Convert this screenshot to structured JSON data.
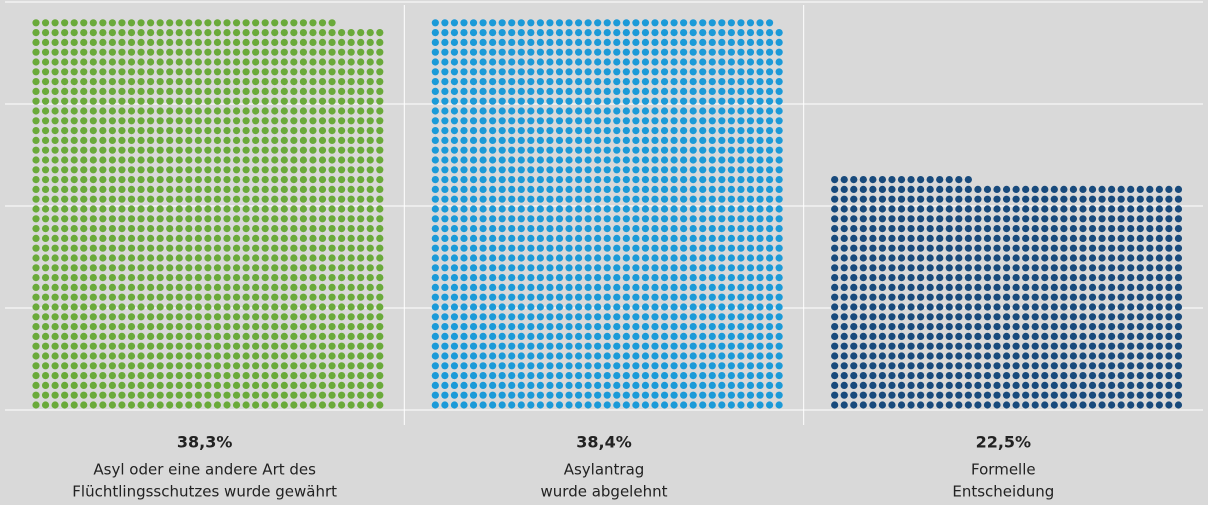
{
  "chart_data": {
    "type": "dot-grid",
    "categories": [
      [
        "Asyl oder eine andere Art des",
        "Flüchtlingsschutzes wurde gewährt"
      ],
      [
        "Asylantrag",
        "wurde abgelehnt"
      ],
      [
        "Formelle",
        "Entscheidung"
      ]
    ],
    "values": [
      38.3,
      38.4,
      22.5
    ],
    "value_labels": [
      "38,3%",
      "38,4%",
      "22,5%"
    ],
    "colors": [
      "#6aaa3a",
      "#1b9ad8",
      "#184a7c"
    ],
    "ylim": [
      0,
      40
    ],
    "yticks": [
      0,
      10,
      20,
      30,
      40
    ],
    "grid": true
  }
}
